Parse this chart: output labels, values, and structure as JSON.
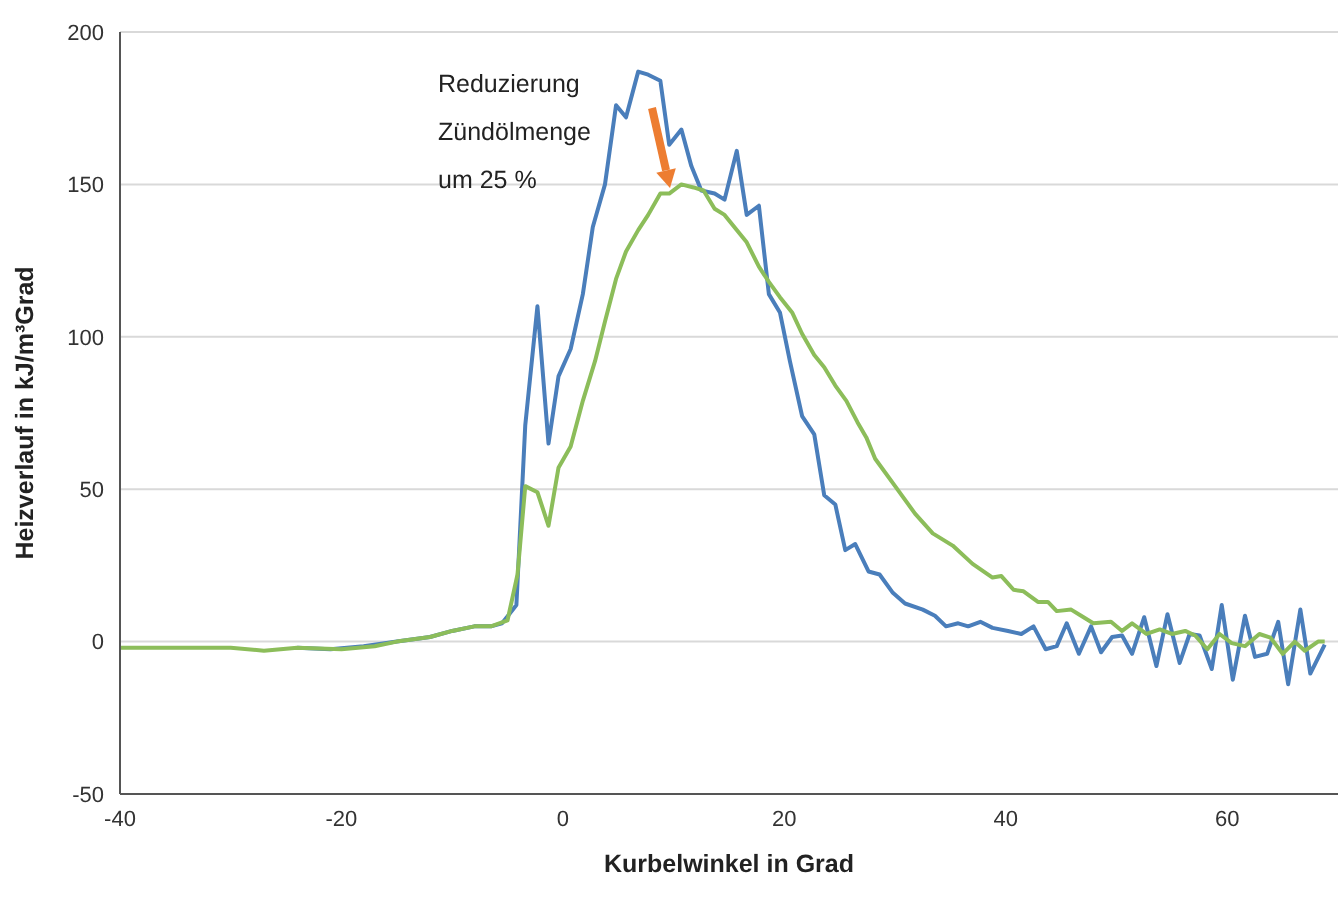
{
  "chart_data": {
    "type": "line",
    "xlabel": "Kurbelwinkel in Grad",
    "ylabel": "Heizverlauf in kJ/m³Grad",
    "xlim": [
      -40,
      70
    ],
    "xticks": [
      -40,
      -20,
      0,
      20,
      40,
      60
    ],
    "ylim": [
      -50,
      200
    ],
    "yticks": [
      -50,
      0,
      50,
      100,
      150,
      200
    ],
    "grid": "y",
    "marker": "none",
    "line_style": "solid",
    "annotations": [
      "Reduzierung\nZündölmenge\num 25 %"
    ],
    "series": [
      {
        "color": "#4a7ebb",
        "x": [
          -24,
          -21,
          -18,
          -15,
          -12,
          -10,
          -8,
          -6.5,
          -5.5,
          -4.2,
          -3.4,
          -2.3,
          -1.3,
          -0.4,
          0.7,
          1.8,
          2.7,
          3.8,
          4.8,
          5.7,
          6.8,
          7.7,
          8.8,
          9.6,
          10.7,
          11.6,
          12.5,
          13.7,
          14.6,
          15.7,
          16.6,
          17.7,
          18.6,
          19.6,
          20.5,
          21.6,
          22.7,
          23.6,
          24.6,
          25.5,
          26.4,
          27.6,
          28.6,
          29.8,
          30.9,
          32.5,
          33.6,
          34.6,
          35.7,
          36.6,
          37.7,
          38.8,
          40.2,
          41.4,
          42.5,
          43.6,
          44.6,
          45.5,
          46.6,
          47.7,
          48.6,
          49.6,
          50.5,
          51.4,
          52.5,
          53.6,
          54.6,
          55.7,
          56.6,
          57.5,
          58.6,
          59.5,
          60.5,
          61.6,
          62.5,
          63.6,
          64.6,
          65.5,
          66.6,
          67.5,
          68.8
        ],
        "values": [
          -2,
          -2.5,
          -1.5,
          0,
          1.5,
          3.5,
          5,
          5,
          6,
          12,
          71,
          110,
          65,
          87,
          96,
          114,
          136,
          150,
          176,
          172,
          187,
          186,
          184,
          163,
          168,
          156,
          148,
          147,
          145,
          161,
          140,
          143,
          114,
          108,
          92,
          74,
          68,
          48,
          45,
          30,
          32,
          23,
          22,
          16,
          12.5,
          10.5,
          8.5,
          5,
          6,
          5,
          6.5,
          4.5,
          3.5,
          2.5,
          5,
          -2.5,
          -1.5,
          6,
          -4,
          5,
          -3.5,
          1.5,
          2,
          -4,
          8,
          -8,
          9,
          -7,
          2.5,
          2,
          -9,
          12,
          -12.5,
          8.5,
          -5,
          -4,
          6.5,
          -14,
          10.5,
          -10.5,
          -1
        ]
      },
      {
        "color": "#8cbd5a",
        "x": [
          -40,
          -30,
          -27,
          -24,
          -20,
          -17,
          -15,
          -12,
          -10,
          -8,
          -6.5,
          -5,
          -4.1,
          -3.4,
          -2.3,
          -1.3,
          -0.4,
          0.7,
          1.8,
          2.9,
          3.8,
          4.8,
          5.7,
          6.8,
          7.7,
          8.8,
          9.6,
          10.7,
          11.8,
          12.7,
          13.7,
          14.6,
          15.7,
          16.6,
          17.7,
          18.6,
          19.6,
          20.7,
          21.6,
          22.7,
          23.6,
          24.6,
          25.6,
          26.6,
          27.4,
          28.2,
          30,
          31.8,
          33.4,
          35.2,
          37,
          38.8,
          39.6,
          40.7,
          41.6,
          42.9,
          43.8,
          44.6,
          45.9,
          46.8,
          47.9,
          49.5,
          50.5,
          51.4,
          52.7,
          53.9,
          55,
          56.2,
          57.1,
          58.2,
          59.3,
          60.4,
          61.6,
          62.9,
          63.9,
          65,
          66.1,
          67,
          68.2,
          68.8
        ],
        "values": [
          -2,
          -2,
          -3,
          -2,
          -2.5,
          -1.5,
          0,
          1.5,
          3.5,
          5,
          5,
          7,
          22,
          51,
          49,
          38,
          57,
          64,
          79,
          92,
          105,
          119,
          128,
          135,
          140,
          147,
          147,
          150,
          149,
          148,
          142,
          140,
          135,
          131,
          123,
          118,
          113,
          108,
          101,
          94,
          90,
          84,
          79,
          72,
          67,
          60,
          51,
          42,
          35.5,
          31.5,
          25.5,
          21,
          21.5,
          17,
          16.5,
          13,
          13,
          10,
          10.5,
          8.5,
          6,
          6.5,
          3.5,
          6,
          2.5,
          4,
          2.5,
          3.5,
          2,
          -2.5,
          2.5,
          -0.5,
          -1.5,
          2.5,
          1.3,
          -4,
          0,
          -3,
          0,
          0
        ]
      }
    ]
  }
}
